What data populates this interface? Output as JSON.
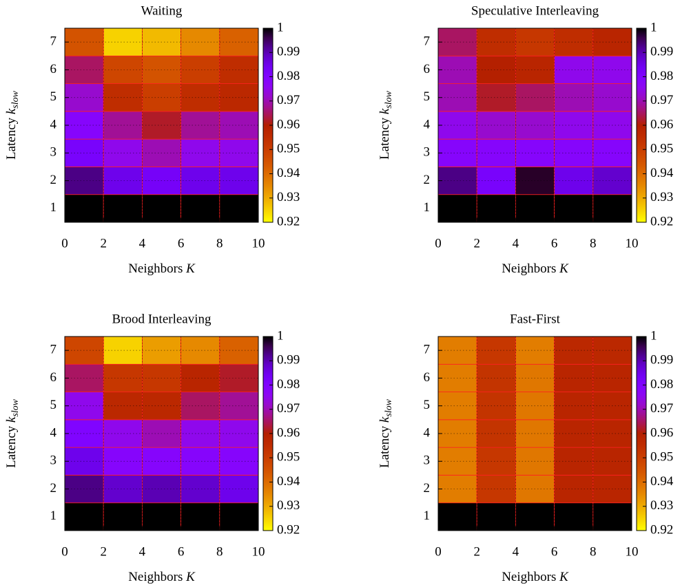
{
  "chart_data": [
    {
      "type": "heatmap",
      "title": "Waiting",
      "xlabel": [
        "Neighbors ",
        "K"
      ],
      "ylabel": [
        "Latency ",
        "k",
        "slow"
      ],
      "x": [
        1,
        3,
        5,
        7,
        9
      ],
      "y": [
        1,
        2,
        3,
        4,
        5,
        6,
        7
      ],
      "z": [
        [
          1,
          1,
          1,
          1,
          1
        ],
        [
          0.993,
          0.985,
          0.983,
          0.985,
          0.985
        ],
        [
          0.982,
          0.975,
          0.97,
          0.975,
          0.975
        ],
        [
          0.978,
          0.968,
          0.962,
          0.968,
          0.97
        ],
        [
          0.972,
          0.955,
          0.95,
          0.955,
          0.957
        ],
        [
          0.965,
          0.948,
          0.945,
          0.95,
          0.955
        ],
        [
          0.945,
          0.925,
          0.928,
          0.935,
          0.942
        ]
      ],
      "xlim": [
        0,
        10
      ],
      "ylim": [
        0.5,
        7.5
      ],
      "xticks": [
        0,
        2,
        4,
        6,
        8,
        10
      ],
      "yticks": [
        1,
        2,
        3,
        4,
        5,
        6,
        7
      ],
      "zlim": [
        0.92,
        1
      ],
      "zticks": [
        0.92,
        0.93,
        0.94,
        0.95,
        0.96,
        0.97,
        0.98,
        0.99,
        1
      ],
      "palette": "rgbformulae-7-5-15-reversed",
      "grid": true
    },
    {
      "type": "heatmap",
      "title": "Speculative Interleaving",
      "xlabel": [
        "Neighbors ",
        "K"
      ],
      "ylabel": [
        "Latency ",
        "k",
        "slow"
      ],
      "x": [
        1,
        3,
        5,
        7,
        9
      ],
      "y": [
        1,
        2,
        3,
        4,
        5,
        6,
        7
      ],
      "z": [
        [
          1,
          1,
          1,
          1,
          1
        ],
        [
          0.993,
          0.982,
          0.998,
          0.985,
          0.988
        ],
        [
          0.978,
          0.978,
          0.978,
          0.978,
          0.978
        ],
        [
          0.975,
          0.972,
          0.972,
          0.975,
          0.975
        ],
        [
          0.97,
          0.962,
          0.965,
          0.97,
          0.972
        ],
        [
          0.97,
          0.96,
          0.958,
          0.975,
          0.975
        ],
        [
          0.965,
          0.955,
          0.952,
          0.955,
          0.958
        ]
      ],
      "xlim": [
        0,
        10
      ],
      "ylim": [
        0.5,
        7.5
      ],
      "xticks": [
        0,
        2,
        4,
        6,
        8,
        10
      ],
      "yticks": [
        1,
        2,
        3,
        4,
        5,
        6,
        7
      ],
      "zlim": [
        0.92,
        1
      ],
      "zticks": [
        0.92,
        0.93,
        0.94,
        0.95,
        0.96,
        0.97,
        0.98,
        0.99,
        1
      ],
      "palette": "rgbformulae-7-5-15-reversed",
      "grid": true
    },
    {
      "type": "heatmap",
      "title": "Brood Interleaving",
      "xlabel": [
        "Neighbors ",
        "K"
      ],
      "ylabel": [
        "Latency ",
        "k",
        "slow"
      ],
      "x": [
        1,
        3,
        5,
        7,
        9
      ],
      "y": [
        1,
        2,
        3,
        4,
        5,
        6,
        7
      ],
      "z": [
        [
          1,
          1,
          1,
          1,
          1
        ],
        [
          0.993,
          0.988,
          0.99,
          0.988,
          0.985
        ],
        [
          0.985,
          0.978,
          0.978,
          0.978,
          0.978
        ],
        [
          0.98,
          0.975,
          0.97,
          0.975,
          0.975
        ],
        [
          0.975,
          0.957,
          0.957,
          0.965,
          0.968
        ],
        [
          0.965,
          0.952,
          0.952,
          0.958,
          0.962
        ],
        [
          0.948,
          0.925,
          0.932,
          0.935,
          0.942
        ]
      ],
      "xlim": [
        0,
        10
      ],
      "ylim": [
        0.5,
        7.5
      ],
      "xticks": [
        0,
        2,
        4,
        6,
        8,
        10
      ],
      "yticks": [
        1,
        2,
        3,
        4,
        5,
        6,
        7
      ],
      "zlim": [
        0.92,
        1
      ],
      "zticks": [
        0.92,
        0.93,
        0.94,
        0.95,
        0.96,
        0.97,
        0.98,
        0.99,
        1
      ],
      "palette": "rgbformulae-7-5-15-reversed",
      "grid": true
    },
    {
      "type": "heatmap",
      "title": "Fast-First",
      "xlabel": [
        "Neighbors ",
        "K"
      ],
      "ylabel": [
        "Latency ",
        "k",
        "slow"
      ],
      "x": [
        1,
        3,
        5,
        7,
        9
      ],
      "y": [
        1,
        2,
        3,
        4,
        5,
        6,
        7
      ],
      "z": [
        [
          1,
          1,
          1,
          1,
          1
        ],
        [
          0.937,
          0.952,
          0.938,
          0.958,
          0.958
        ],
        [
          0.937,
          0.952,
          0.938,
          0.958,
          0.958
        ],
        [
          0.937,
          0.953,
          0.938,
          0.958,
          0.958
        ],
        [
          0.937,
          0.953,
          0.938,
          0.958,
          0.958
        ],
        [
          0.937,
          0.953,
          0.938,
          0.958,
          0.958
        ],
        [
          0.937,
          0.952,
          0.937,
          0.957,
          0.957
        ]
      ],
      "xlim": [
        0,
        10
      ],
      "ylim": [
        0.5,
        7.5
      ],
      "xticks": [
        0,
        2,
        4,
        6,
        8,
        10
      ],
      "yticks": [
        1,
        2,
        3,
        4,
        5,
        6,
        7
      ],
      "zlim": [
        0.92,
        1
      ],
      "zticks": [
        0.92,
        0.93,
        0.94,
        0.95,
        0.96,
        0.97,
        0.98,
        0.99,
        1
      ],
      "palette": "rgbformulae-7-5-15-reversed",
      "grid": true
    }
  ]
}
